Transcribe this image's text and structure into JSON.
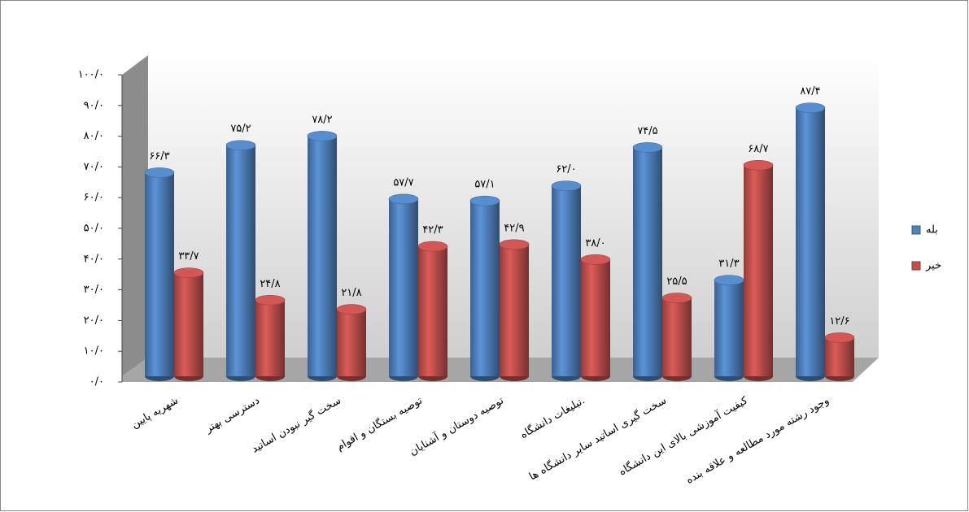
{
  "chart_data": {
    "type": "bar3d",
    "categories": [
      "شهریه پایین",
      "دسترسی بهتر",
      "سخت گیر نبودن اساتید",
      "توصیه بستگان و اقوام",
      "توصیه دوستان و آشنایان",
      "تبلیغات دانشگاه.",
      "سخت گیری اساتید سایر دانشگاه ها",
      "کیفیت آموزشی بالای این دانشگاه",
      "وجود رشته مورد مطالعه و علاقه بنده"
    ],
    "series": [
      {
        "name": "بله",
        "color": "#4f81bd",
        "values": [
          66.3,
          75.2,
          78.2,
          57.7,
          57.1,
          62.0,
          74.5,
          31.3,
          87.4
        ],
        "value_labels": [
          "۶۶/۳",
          "۷۵/۲",
          "۷۸/۲",
          "۵۷/۷",
          "۵۷/۱",
          "۶۲/۰",
          "۷۴/۵",
          "۳۱/۳",
          "۸۷/۴"
        ]
      },
      {
        "name": "خیر",
        "color": "#c0504d",
        "values": [
          33.7,
          24.8,
          21.8,
          42.3,
          42.9,
          38.0,
          25.5,
          68.7,
          12.6
        ],
        "value_labels": [
          "۳۳/۷",
          "۲۴/۸",
          "۲۱/۸",
          "۴۲/۳",
          "۴۲/۹",
          "۳۸/۰",
          "۲۵/۵",
          "۶۸/۷",
          "۱۲/۶"
        ]
      }
    ],
    "ylim": [
      0,
      100
    ],
    "yticks": [
      {
        "value": 0,
        "label": "۰/۰"
      },
      {
        "value": 10,
        "label": "۱۰/۰"
      },
      {
        "value": 20,
        "label": "۲۰/۰"
      },
      {
        "value": 30,
        "label": "۳۰/۰"
      },
      {
        "value": 40,
        "label": "۴۰/۰"
      },
      {
        "value": 50,
        "label": "۵۰/۰"
      },
      {
        "value": 60,
        "label": "۶۰/۰"
      },
      {
        "value": 70,
        "label": "۷۰/۰"
      },
      {
        "value": 80,
        "label": "۸۰/۰"
      },
      {
        "value": 90,
        "label": "۹۰/۰"
      },
      {
        "value": 100,
        "label": "۱۰۰/۰"
      }
    ],
    "legend": "right"
  }
}
